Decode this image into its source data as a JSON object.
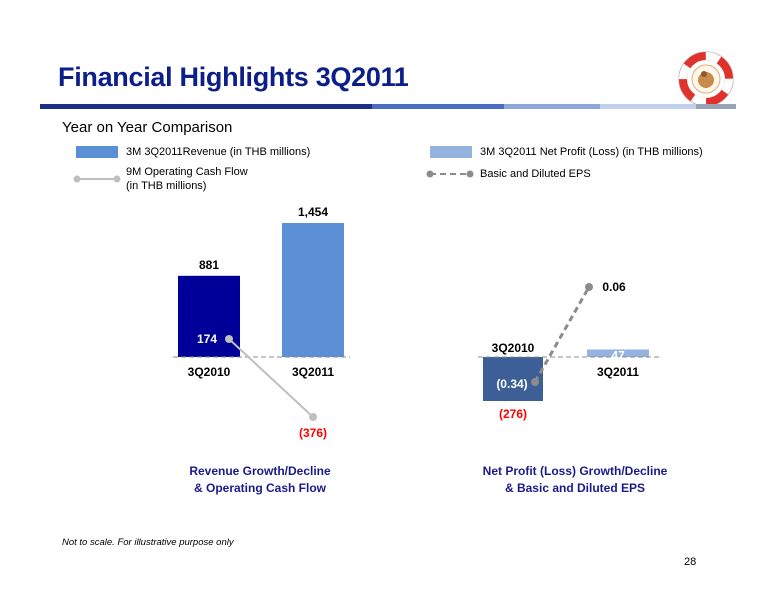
{
  "header": {
    "title": "Financial Highlights 3Q2011",
    "subtitle": "Year on Year Comparison"
  },
  "legend": {
    "revenue": "3M 3Q2011Revenue (in THB millions)",
    "cashflow_line1": "9M Operating Cash Flow",
    "cashflow_line2": "(in THB millions)",
    "net_profit": "3M 3Q2011 Net Profit  (Loss) (in THB millions)",
    "eps": "Basic and Diluted EPS"
  },
  "colors": {
    "title": "#0b1e8a",
    "bar_3q2010_revenue": "#000099",
    "bar_3q2011_revenue": "#5b8fd6",
    "bar_3q2010_profit": "#3d5f97",
    "bar_3q2011_profit": "#95b3df",
    "cashflow_line": "#bfbfbf",
    "eps_line": "#8c8c8c",
    "negative": "#ff0000",
    "caption": "#1a1a8c"
  },
  "chart_data": [
    {
      "type": "bar",
      "categories": [
        "3Q2010",
        "3Q2011"
      ],
      "series": [
        {
          "name": "3M 3Q2011Revenue (in THB millions)",
          "type": "bar",
          "values": [
            881,
            1454
          ],
          "labels": [
            "881",
            "1,454"
          ]
        },
        {
          "name": "9M Operating Cash Flow (in THB millions)",
          "type": "line",
          "values": [
            174,
            -376
          ],
          "labels": [
            "174",
            "(376)"
          ]
        }
      ],
      "title": "Revenue Growth/Decline & Operating Cash Flow",
      "caption_line1": "Revenue Growth/Decline",
      "caption_line2": "& Operating Cash Flow",
      "note": "Not to scale"
    },
    {
      "type": "bar",
      "categories": [
        "3Q2010",
        "3Q2011"
      ],
      "series": [
        {
          "name": "3M 3Q2011 Net Profit  (Loss) (in THB millions)",
          "type": "bar",
          "values": [
            -276,
            47
          ],
          "labels": [
            "(276)",
            "47"
          ]
        },
        {
          "name": "Basic and Diluted EPS",
          "type": "line",
          "values": [
            -0.34,
            0.06
          ],
          "labels": [
            "(0.34)",
            "0.06"
          ]
        }
      ],
      "title": "Net Profit (Loss) Growth/Decline & Basic and Diluted EPS",
      "caption_line1": "Net Profit (Loss) Growth/Decline",
      "caption_line2": "& Basic and Diluted EPS",
      "note": "Not to scale"
    }
  ],
  "footnote": "Not to scale.  For illustrative purpose only",
  "page_number": "28"
}
